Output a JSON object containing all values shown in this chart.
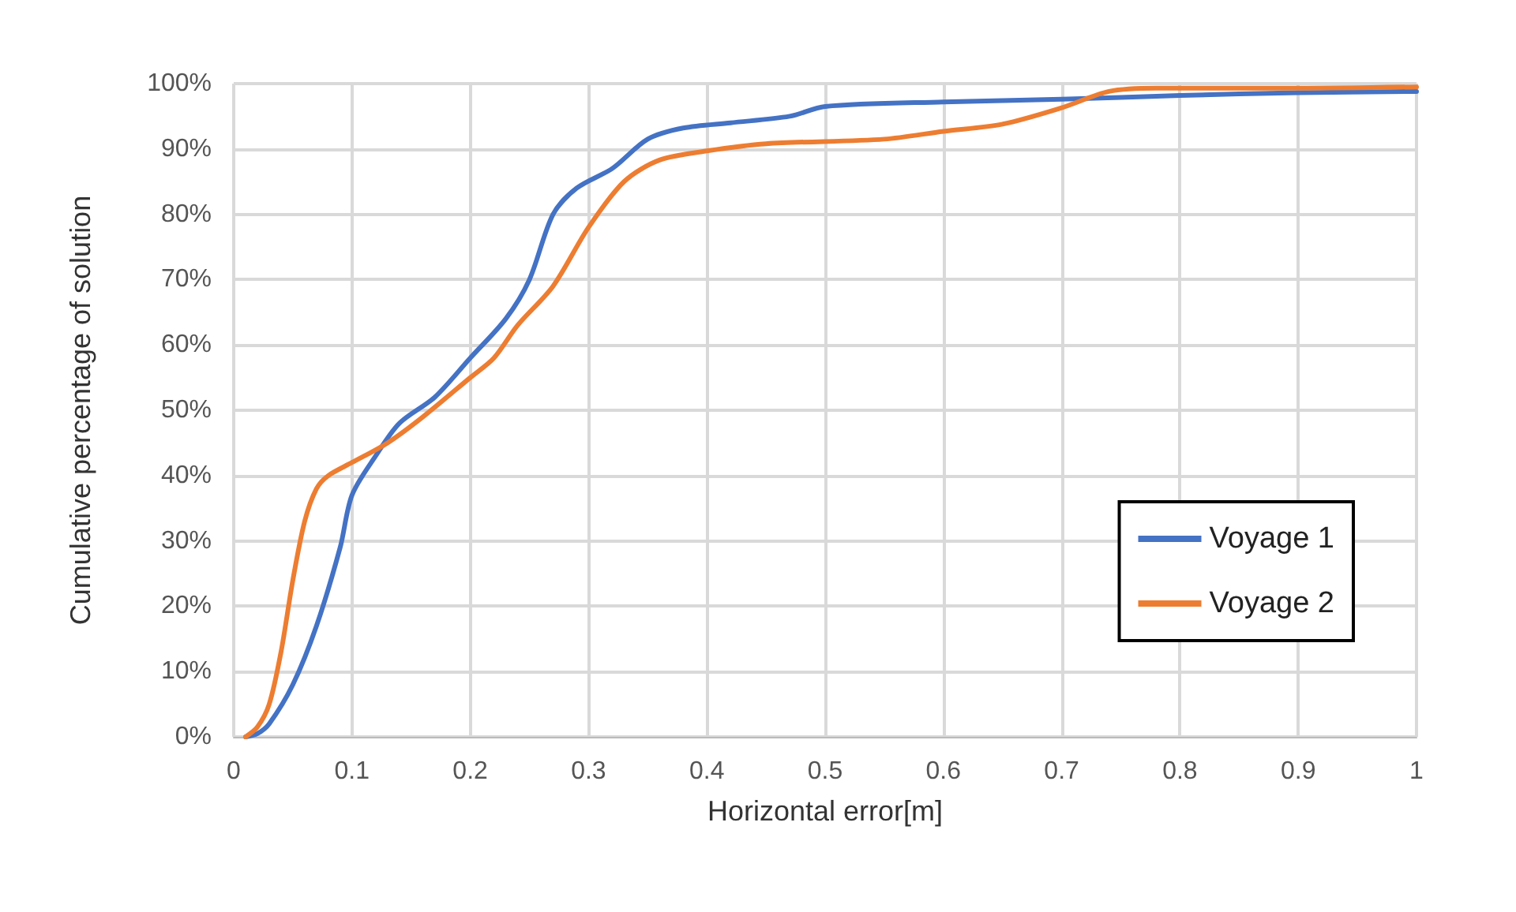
{
  "chart_data": {
    "type": "line",
    "xlabel": "Horizontal error[m]",
    "ylabel": "Cumulative percentage of solution",
    "xlim": [
      0,
      1
    ],
    "xticks": [
      0,
      0.1,
      0.2,
      0.3,
      0.4,
      0.5,
      0.6,
      0.7,
      0.8,
      0.9,
      1
    ],
    "ylim": [
      0,
      100
    ],
    "yticks": [
      {
        "value": 0,
        "label": "0%"
      },
      {
        "value": 10,
        "label": "10%"
      },
      {
        "value": 20,
        "label": "20%"
      },
      {
        "value": 30,
        "label": "30%"
      },
      {
        "value": 40,
        "label": "40%"
      },
      {
        "value": 50,
        "label": "50%"
      },
      {
        "value": 60,
        "label": "60%"
      },
      {
        "value": 70,
        "label": "70%"
      },
      {
        "value": 80,
        "label": "80%"
      },
      {
        "value": 90,
        "label": "90%"
      },
      {
        "value": 100,
        "label": "100%"
      }
    ],
    "grid": true,
    "legend": "right",
    "marker": "none",
    "line_style": "solid",
    "series": [
      {
        "name": "Voyage 1",
        "color": "#4472c4",
        "x": [
          0.01,
          0.02,
          0.03,
          0.05,
          0.07,
          0.09,
          0.1,
          0.12,
          0.14,
          0.17,
          0.2,
          0.23,
          0.25,
          0.27,
          0.29,
          0.32,
          0.35,
          0.38,
          0.42,
          0.47,
          0.5,
          0.6,
          0.7,
          0.8,
          0.9,
          1
        ],
        "values": [
          0,
          0.5,
          2,
          8,
          17,
          29,
          37,
          43,
          48,
          52,
          58,
          64,
          70,
          80,
          84,
          87,
          91.5,
          93.2,
          94,
          95,
          96.5,
          97.2,
          97.6,
          98.2,
          98.6,
          98.8
        ]
      },
      {
        "name": "Voyage 2",
        "color": "#ed7d31",
        "x": [
          0.01,
          0.02,
          0.03,
          0.04,
          0.05,
          0.06,
          0.07,
          0.08,
          0.1,
          0.13,
          0.16,
          0.2,
          0.22,
          0.24,
          0.27,
          0.3,
          0.33,
          0.36,
          0.4,
          0.45,
          0.55,
          0.6,
          0.65,
          0.7,
          0.74,
          0.78,
          0.9,
          1
        ],
        "values": [
          0,
          1.5,
          5,
          13,
          24,
          33,
          38,
          40,
          42,
          45,
          49,
          55,
          58,
          63,
          69,
          78,
          85,
          88.3,
          89.7,
          90.8,
          91.5,
          92.7,
          93.8,
          96.3,
          98.8,
          99.3,
          99.3,
          99.5
        ]
      }
    ]
  }
}
